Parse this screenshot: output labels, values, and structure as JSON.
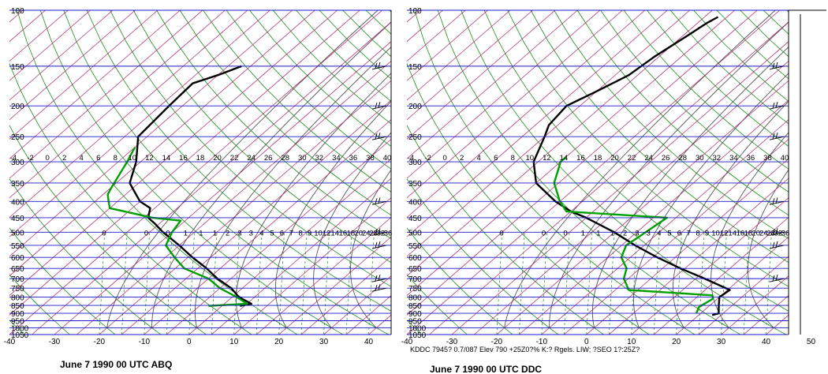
{
  "charts": {
    "left": {
      "caption": "June 7  1990 00 UTC ABQ",
      "footer": ""
    },
    "right": {
      "caption": "June 7  1990 00 UTC DDC",
      "footer": "KDDC 7945? 0.7/087  Elev 790 +25Z0?% K:? Rgels. LIW; ?SEO 1?:25Z?"
    }
  },
  "chart_data": [
    {
      "type": "line",
      "title": "June 7  1990 00 UTC ABQ",
      "xlabel": "",
      "ylabel": "",
      "pressure_ticks": [
        100,
        150,
        200,
        250,
        300,
        350,
        400,
        450,
        500,
        550,
        600,
        650,
        700,
        750,
        800,
        850,
        900,
        950,
        1000,
        1050
      ],
      "temp_ticks": [
        -40,
        -30,
        -20,
        -10,
        0,
        10,
        20,
        30,
        40
      ],
      "temp_range": [
        -40,
        45
      ],
      "pressure_range": [
        100,
        1050
      ],
      "upper_tick_labels": [
        "-4",
        "-2",
        "0",
        "2",
        "4",
        "6",
        "8",
        "10",
        "12",
        "14",
        "16",
        "18",
        "20",
        "22",
        "24",
        "26",
        "28",
        "30",
        "32",
        "34",
        "36",
        "38",
        "40"
      ],
      "mixing_labels": [
        "0",
        "0",
        "0",
        "1",
        "1",
        "1",
        "2",
        "3",
        "3",
        "4",
        "5",
        "6",
        "7",
        "8",
        "9",
        "10",
        "12",
        "14",
        "16",
        "18",
        "20",
        "24",
        "28",
        "32",
        "36"
      ],
      "series": [
        {
          "name": "",
          "color": "#000000",
          "points": [
            [
              853,
              4
            ],
            [
              840,
              6
            ],
            [
              800,
              1.5
            ],
            [
              750,
              -2.5
            ],
            [
              700,
              -8
            ],
            [
              650,
              -13
            ],
            [
              600,
              -19
            ],
            [
              550,
              -25
            ],
            [
              500,
              -32
            ],
            [
              470,
              -36
            ],
            [
              450,
              -39
            ],
            [
              420,
              -41
            ],
            [
              400,
              -45
            ],
            [
              350,
              -52
            ],
            [
              300,
              -56
            ],
            [
              250,
              -62
            ],
            [
              200,
              -63
            ],
            [
              170,
              -63.5
            ],
            [
              160,
              -60
            ],
            [
              150,
              -57
            ]
          ]
        },
        {
          "name": "",
          "color": "#00A000",
          "points": [
            [
              853,
              -3
            ],
            [
              840,
              5
            ],
            [
              800,
              1
            ],
            [
              750,
              -5
            ],
            [
              700,
              -10
            ],
            [
              650,
              -18
            ],
            [
              600,
              -23
            ],
            [
              550,
              -28
            ],
            [
              500,
              -30
            ],
            [
              460,
              -31
            ],
            [
              450,
              -38
            ],
            [
              420,
              -50
            ],
            [
              400,
              -52
            ],
            [
              380,
              -54
            ],
            [
              360,
              -55
            ],
            [
              300,
              -58
            ],
            [
              270,
              -60
            ]
          ]
        }
      ],
      "wind_barbs_mb": [
        150,
        200,
        250,
        400,
        500,
        550,
        700,
        750
      ]
    },
    {
      "type": "line",
      "title": "June 7  1990 00 UTC DDC",
      "xlabel": "",
      "ylabel": "",
      "pressure_ticks": [
        100,
        150,
        200,
        250,
        300,
        350,
        400,
        450,
        500,
        550,
        600,
        650,
        700,
        750,
        800,
        850,
        900,
        950,
        1000,
        1050
      ],
      "temp_ticks": [
        -40,
        -30,
        -20,
        -10,
        0,
        10,
        20,
        30,
        40,
        50
      ],
      "temp_range": [
        -40,
        45
      ],
      "pressure_range": [
        100,
        1050
      ],
      "upper_tick_labels": [
        "-4",
        "-2",
        "0",
        "2",
        "4",
        "6",
        "8",
        "10",
        "12",
        "14",
        "16",
        "18",
        "20",
        "22",
        "24",
        "26",
        "28",
        "30",
        "32",
        "34",
        "36",
        "38",
        "40"
      ],
      "mixing_labels": [
        "0",
        "0",
        "0",
        "1",
        "1",
        "1",
        "2",
        "3",
        "3",
        "4",
        "5",
        "6",
        "7",
        "8",
        "9",
        "10",
        "12",
        "14",
        "16",
        "18",
        "20",
        "24",
        "28",
        "32",
        "36"
      ],
      "series": [
        {
          "name": "",
          "color": "#000000",
          "points": [
            [
              912,
              23
            ],
            [
              900,
              24
            ],
            [
              850,
              22
            ],
            [
              800,
              20
            ],
            [
              760,
              20.5
            ],
            [
              700,
              12
            ],
            [
              650,
              4
            ],
            [
              600,
              -4
            ],
            [
              550,
              -12
            ],
            [
              500,
              -20
            ],
            [
              450,
              -30
            ],
            [
              430,
              -35
            ],
            [
              400,
              -41
            ],
            [
              350,
              -50
            ],
            [
              300,
              -56
            ],
            [
              250,
              -60
            ],
            [
              230,
              -62
            ],
            [
              200,
              -63
            ],
            [
              180,
              -60
            ],
            [
              160,
              -57
            ],
            [
              140,
              -56
            ],
            [
              120,
              -54
            ],
            [
              110,
              -53
            ],
            [
              105,
              -52
            ]
          ]
        },
        {
          "name": "",
          "color": "#00A000",
          "points": [
            [
              900,
              19
            ],
            [
              860,
              18
            ],
            [
              810,
              19
            ],
            [
              790,
              18
            ],
            [
              760,
              -2
            ],
            [
              700,
              -6
            ],
            [
              650,
              -8
            ],
            [
              600,
              -12
            ],
            [
              550,
              -14
            ],
            [
              500,
              -13
            ],
            [
              450,
              -12
            ],
            [
              430,
              -36
            ],
            [
              400,
              -40
            ],
            [
              350,
              -46
            ],
            [
              300,
              -50
            ],
            [
              290,
              -50
            ]
          ]
        }
      ],
      "wind_barbs_mb": [
        150,
        200,
        250,
        400,
        500,
        550,
        700
      ]
    }
  ]
}
